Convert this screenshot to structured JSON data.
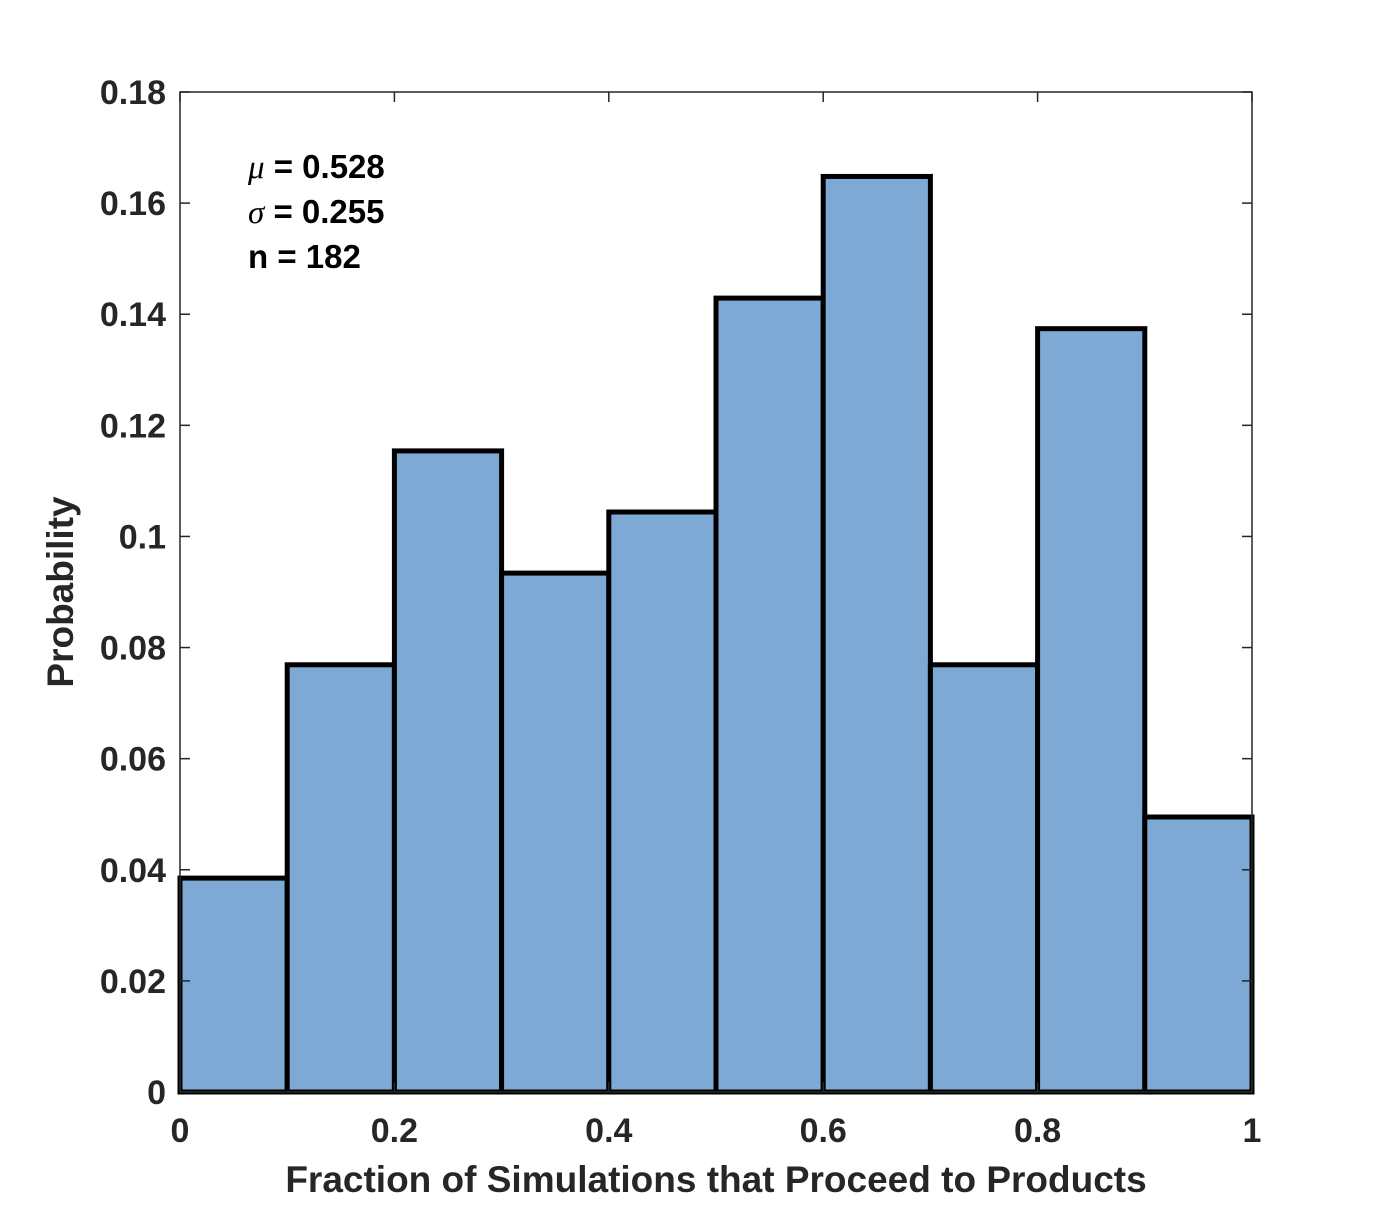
{
  "chart_data": {
    "type": "bar",
    "bins": [
      {
        "x_start": 0.0,
        "x_end": 0.1,
        "value": 0.0385
      },
      {
        "x_start": 0.1,
        "x_end": 0.2,
        "value": 0.0769
      },
      {
        "x_start": 0.2,
        "x_end": 0.3,
        "value": 0.1154
      },
      {
        "x_start": 0.3,
        "x_end": 0.4,
        "value": 0.0934
      },
      {
        "x_start": 0.4,
        "x_end": 0.5,
        "value": 0.1044
      },
      {
        "x_start": 0.5,
        "x_end": 0.6,
        "value": 0.1429
      },
      {
        "x_start": 0.6,
        "x_end": 0.7,
        "value": 0.1648
      },
      {
        "x_start": 0.7,
        "x_end": 0.8,
        "value": 0.0769
      },
      {
        "x_start": 0.8,
        "x_end": 0.9,
        "value": 0.1374
      },
      {
        "x_start": 0.9,
        "x_end": 1.0,
        "value": 0.0495
      }
    ],
    "xlabel": "Fraction of Simulations that Proceed to Products",
    "ylabel": "Probability",
    "xlim": [
      0,
      1
    ],
    "ylim": [
      0,
      0.18
    ],
    "x_ticks": [
      {
        "value": 0,
        "label": "0"
      },
      {
        "value": 0.2,
        "label": "0.2"
      },
      {
        "value": 0.4,
        "label": "0.4"
      },
      {
        "value": 0.6,
        "label": "0.6"
      },
      {
        "value": 0.8,
        "label": "0.8"
      },
      {
        "value": 1,
        "label": "1"
      }
    ],
    "y_ticks": [
      {
        "value": 0,
        "label": "0"
      },
      {
        "value": 0.02,
        "label": "0.02"
      },
      {
        "value": 0.04,
        "label": "0.04"
      },
      {
        "value": 0.06,
        "label": "0.06"
      },
      {
        "value": 0.08,
        "label": "0.08"
      },
      {
        "value": 0.1,
        "label": "0.1"
      },
      {
        "value": 0.12,
        "label": "0.12"
      },
      {
        "value": 0.14,
        "label": "0.14"
      },
      {
        "value": 0.16,
        "label": "0.16"
      },
      {
        "value": 0.18,
        "label": "0.18"
      }
    ],
    "grid": false,
    "bar_color": "#7EA9D4",
    "edge_color": "#000000",
    "annotations": [
      {
        "symbol": "μ",
        "text": " = 0.528"
      },
      {
        "symbol": "σ",
        "text": " = 0.255"
      },
      {
        "symbol": "",
        "text": "n = 182"
      }
    ]
  }
}
